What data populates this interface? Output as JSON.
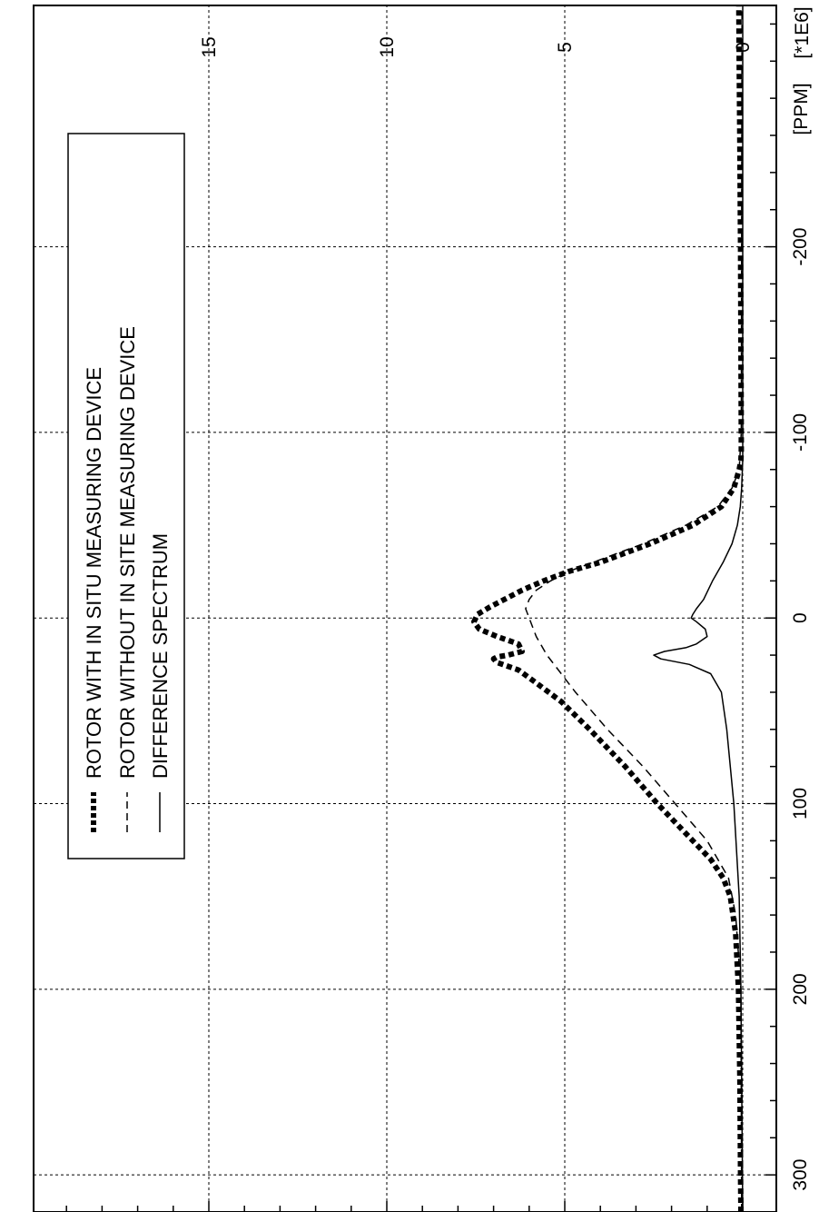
{
  "chart_data": {
    "type": "line",
    "orientation": "rotated-90-ccw",
    "title": "",
    "xlabel": "",
    "ylabel": "",
    "x_unit": "[PPM]",
    "y_unit": "[*1E6]",
    "x_reversed": true,
    "xlim": [
      320,
      -330
    ],
    "ylim": [
      0,
      20
    ],
    "x_ticks": [
      300,
      200,
      100,
      0,
      -100,
      -200
    ],
    "x_tick_labels": [
      "300",
      "200",
      "100",
      "0",
      "-100",
      "-200"
    ],
    "y_ticks": [
      0,
      5,
      10,
      15
    ],
    "y_tick_labels": [
      "0",
      "5",
      "10",
      "15"
    ],
    "x_minor_step": 20,
    "y_minor_step": 1,
    "grid": true,
    "legend_position": "top-right",
    "series": [
      {
        "name": "ROTOR WITH IN SITU MEASURING DEVICE",
        "style": "thick-dotted",
        "color": "#000000",
        "x": [
          320,
          300,
          250,
          200,
          170,
          150,
          140,
          130,
          120,
          110,
          100,
          80,
          60,
          45,
          35,
          28,
          24,
          22,
          21,
          20,
          18,
          14,
          10,
          6,
          2,
          -2,
          -6,
          -10,
          -15,
          -20,
          -25,
          -30,
          -40,
          -50,
          -60,
          -70,
          -80,
          -85,
          -90,
          -100,
          -150,
          -200,
          -250,
          -300,
          -330
        ],
        "y": [
          0.05,
          0.06,
          0.08,
          0.12,
          0.2,
          0.35,
          0.55,
          0.9,
          1.4,
          1.9,
          2.4,
          3.3,
          4.3,
          5.1,
          5.8,
          6.3,
          6.9,
          7.0,
          6.9,
          6.6,
          6.2,
          6.3,
          6.9,
          7.4,
          7.55,
          7.45,
          7.1,
          6.7,
          6.2,
          5.6,
          4.9,
          4.0,
          2.6,
          1.4,
          0.6,
          0.25,
          0.1,
          0.05,
          0.04,
          0.04,
          0.05,
          0.06,
          0.08,
          0.1,
          0.11
        ]
      },
      {
        "name": "ROTOR WITHOUT IN SITE MEASURING DEVICE",
        "style": "dashed",
        "color": "#000000",
        "x": [
          320,
          200,
          160,
          140,
          120,
          100,
          80,
          60,
          40,
          20,
          10,
          0,
          -5,
          -10,
          -15,
          -20,
          -25,
          -30,
          -40,
          -50,
          -60,
          -70,
          -80,
          -100,
          -200,
          -330
        ],
        "y": [
          0.03,
          0.05,
          0.2,
          0.4,
          1.0,
          1.9,
          2.8,
          3.8,
          4.7,
          5.5,
          5.8,
          6.0,
          6.1,
          6.0,
          5.8,
          5.4,
          4.9,
          4.2,
          2.8,
          1.6,
          0.7,
          0.3,
          0.1,
          0.04,
          0.03,
          0.02
        ]
      },
      {
        "name": "DIFFERENCE SPECTRUM",
        "style": "solid",
        "color": "#000000",
        "x": [
          320,
          200,
          150,
          100,
          60,
          40,
          30,
          25,
          22,
          20,
          18,
          16,
          14,
          10,
          6,
          2,
          0,
          -2,
          -5,
          -10,
          -20,
          -30,
          -40,
          -50,
          -60,
          -70,
          -80,
          -85,
          -90,
          -100,
          -200,
          -330
        ],
        "y": [
          0.0,
          0.05,
          0.1,
          0.25,
          0.45,
          0.6,
          0.9,
          1.5,
          2.3,
          2.5,
          2.2,
          1.6,
          1.3,
          1.0,
          1.05,
          1.3,
          1.45,
          1.4,
          1.3,
          1.1,
          0.85,
          0.55,
          0.3,
          0.15,
          0.07,
          0.03,
          0.01,
          0.0,
          0.0,
          0.0,
          0.0,
          0.0
        ]
      }
    ]
  }
}
